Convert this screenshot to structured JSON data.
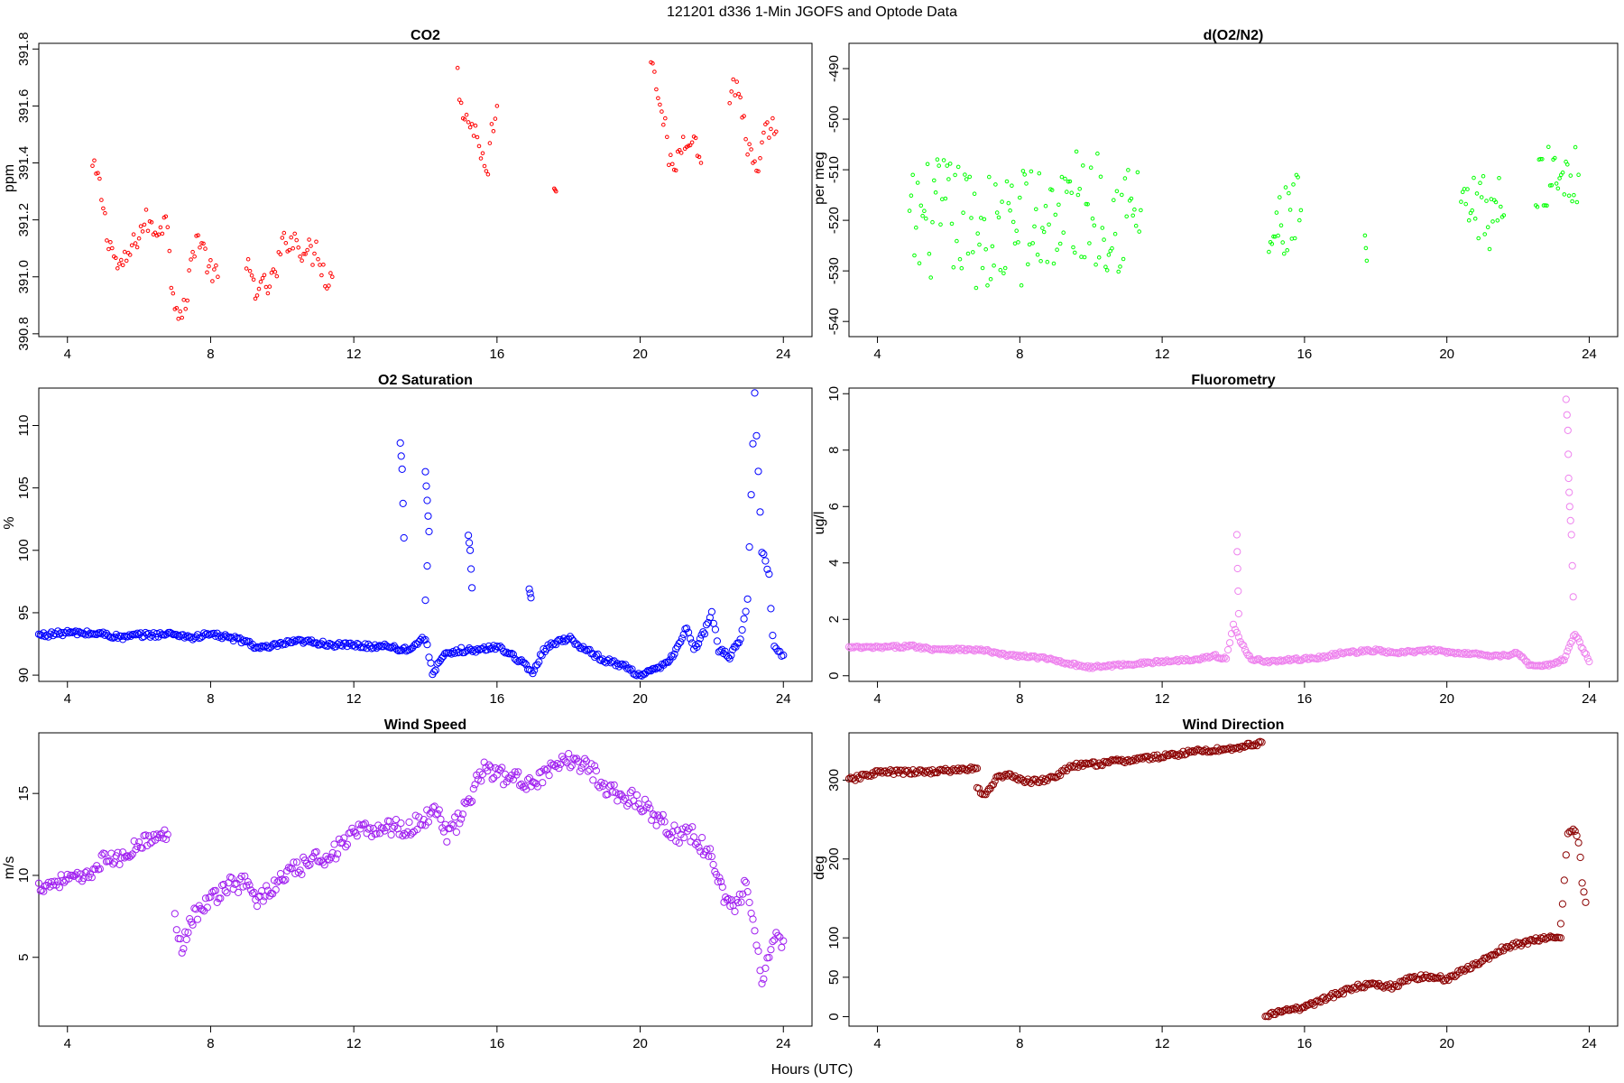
{
  "figure": {
    "title": "121201   d336   1-Min  JGOFS and Optode Data",
    "xlabel": "Hours (UTC)"
  },
  "chart_data": [
    {
      "type": "scatter",
      "id": "co2",
      "title": "CO2",
      "ylabel": "ppm",
      "color": "#ff0000",
      "marker_size": "small",
      "xlim": [
        3.2,
        24.8
      ],
      "ylim": [
        390.79,
        391.82
      ],
      "xticks": [
        4,
        8,
        12,
        16,
        20,
        24
      ],
      "yticks": [
        390.8,
        391.0,
        391.2,
        391.4,
        391.6,
        391.8
      ],
      "ytick_labels": [
        "390.8",
        "391.0",
        "391.2",
        "391.4",
        "391.6",
        "391.8"
      ],
      "segments": [
        {
          "x": [
            4.7,
            4.85,
            5.0,
            5.1,
            5.2,
            5.35,
            5.5,
            5.6,
            5.8,
            6.0,
            6.2,
            6.4,
            6.6,
            6.8,
            6.9,
            7.0,
            7.1,
            7.2,
            7.3,
            7.4,
            7.5,
            7.6,
            7.7,
            7.8,
            7.9,
            8.0,
            8.1,
            8.2
          ],
          "y": [
            391.38,
            391.35,
            391.25,
            391.15,
            391.12,
            391.05,
            391.03,
            391.05,
            391.1,
            391.15,
            391.2,
            391.16,
            391.18,
            391.2,
            391.0,
            390.92,
            390.88,
            390.86,
            390.9,
            391.0,
            391.08,
            391.14,
            391.13,
            391.1,
            391.05,
            391.02,
            391.01,
            391.0
          ],
          "noise": 0.04
        },
        {
          "x": [
            9.0,
            9.2,
            9.4,
            9.6,
            9.8,
            10.0,
            10.2,
            10.4,
            10.6,
            10.8,
            11.0,
            11.2,
            11.4
          ],
          "y": [
            391.03,
            390.98,
            390.95,
            390.97,
            391.0,
            391.1,
            391.14,
            391.12,
            391.1,
            391.08,
            391.1,
            391.0,
            391.0
          ],
          "noise": 0.05
        },
        {
          "x": [
            14.9,
            15.0,
            15.1,
            15.2,
            15.35,
            15.5,
            15.6,
            15.7,
            15.8,
            15.9,
            16.0
          ],
          "y": [
            391.7,
            391.62,
            391.58,
            391.55,
            391.52,
            391.48,
            391.42,
            391.35,
            391.45,
            391.55,
            391.6
          ],
          "noise": 0.05
        },
        {
          "x": [
            17.6,
            17.65
          ],
          "y": [
            391.31,
            391.3
          ],
          "noise": 0.0
        },
        {
          "x": [
            20.3,
            20.4,
            20.5,
            20.6,
            20.7,
            20.8,
            20.9,
            21.0,
            21.2,
            21.4,
            21.6,
            21.7
          ],
          "y": [
            391.78,
            391.72,
            391.66,
            391.6,
            391.52,
            391.42,
            391.36,
            391.4,
            391.48,
            391.5,
            391.45,
            391.4
          ],
          "noise": 0.04
        },
        {
          "x": [
            22.5,
            22.6,
            22.7,
            22.8,
            22.9,
            23.0,
            23.1,
            23.2,
            23.3,
            23.4,
            23.5,
            23.6,
            23.7,
            23.8
          ],
          "y": [
            391.62,
            391.68,
            391.66,
            391.62,
            391.55,
            391.45,
            391.42,
            391.38,
            391.35,
            391.44,
            391.5,
            391.52,
            391.53,
            391.51
          ],
          "noise": 0.04
        }
      ]
    },
    {
      "type": "scatter",
      "id": "o2n2",
      "title": "d(O2/N2)",
      "ylabel": "per meg",
      "color": "#00ff00",
      "marker_size": "small",
      "xlim": [
        3.2,
        24.8
      ],
      "ylim": [
        -543,
        -485
      ],
      "xticks": [
        4,
        8,
        12,
        16,
        20,
        24
      ],
      "yticks": [
        -540,
        -530,
        -520,
        -510,
        -500,
        -490
      ],
      "ytick_labels": [
        "-540",
        "-530",
        "-520",
        "-510",
        "-500",
        "-490"
      ],
      "segments": [
        {
          "x": [
            4.9,
            5.5,
            6.0,
            6.5,
            7.0,
            7.5,
            8.0,
            8.5,
            9.0,
            9.5,
            10.0,
            10.5,
            11.0,
            11.4
          ],
          "y": [
            -522,
            -520,
            -519,
            -521,
            -522,
            -523,
            -521,
            -520,
            -519,
            -518,
            -517,
            -518,
            -519,
            -518
          ],
          "noise": 12.0
        },
        {
          "x": [
            15.0,
            15.3,
            15.6,
            15.9
          ],
          "y": [
            -525,
            -522,
            -520,
            -518
          ],
          "noise": 8.0
        },
        {
          "x": [
            17.7,
            17.75
          ],
          "y": [
            -523,
            -528
          ],
          "noise": 0.0
        },
        {
          "x": [
            20.4,
            20.8,
            21.2,
            21.6
          ],
          "y": [
            -520,
            -519,
            -518,
            -519
          ],
          "noise": 8.0
        },
        {
          "x": [
            22.5,
            22.9,
            23.3,
            23.7
          ],
          "y": [
            -513,
            -511,
            -510,
            -511
          ],
          "noise": 6.0
        }
      ]
    },
    {
      "type": "scatter",
      "id": "o2sat",
      "title": "O2 Saturation",
      "ylabel": "%",
      "color": "#0000ff",
      "marker_size": "large",
      "xlim": [
        3.2,
        24.8
      ],
      "ylim": [
        89.5,
        113
      ],
      "xticks": [
        4,
        8,
        12,
        16,
        20,
        24
      ],
      "yticks": [
        90,
        95,
        100,
        105,
        110
      ],
      "ytick_labels": [
        "90",
        "95",
        "100",
        "105",
        "110"
      ],
      "segments": [
        {
          "x": [
            3.2,
            4.0,
            5.0,
            5.5,
            6.0,
            7.0,
            7.5,
            8.0,
            8.5,
            9.0,
            9.3,
            9.6,
            10.0,
            10.5,
            11.0,
            11.5,
            12.0,
            12.5,
            13.0,
            13.3,
            13.6,
            14.0,
            14.2,
            14.5,
            15.0,
            15.5,
            16.0,
            16.5,
            17.0,
            17.3,
            17.6,
            18.0,
            18.5,
            19.0,
            19.5,
            20.0,
            20.3,
            20.7,
            21.0,
            21.3,
            21.5,
            21.8,
            22.0,
            22.2,
            22.5,
            22.8,
            23.0,
            23.2,
            23.4,
            23.6,
            23.7,
            23.8,
            24.0
          ],
          "y": [
            93.2,
            93.4,
            93.3,
            93.0,
            93.2,
            93.3,
            93.0,
            93.3,
            93.0,
            92.7,
            92.2,
            92.2,
            92.5,
            92.7,
            92.6,
            92.4,
            92.4,
            92.3,
            92.4,
            92.0,
            92.2,
            93.0,
            90.2,
            91.5,
            92.0,
            92.0,
            92.3,
            91.5,
            90.2,
            92.0,
            92.6,
            93.0,
            92.0,
            91.2,
            90.8,
            90.0,
            90.3,
            90.8,
            92.0,
            93.8,
            92.0,
            93.5,
            95.0,
            92.0,
            91.5,
            93.0,
            96.0,
            112.5,
            100.0,
            98.0,
            93.0,
            92.0,
            91.6
          ],
          "noise": 0.2
        },
        {
          "x": [
            13.3,
            13.35,
            13.4
          ],
          "y": [
            108.6,
            106.5,
            101.0
          ],
          "noise": 0.0
        },
        {
          "x": [
            14.0,
            14.05,
            14.1,
            14.0
          ],
          "y": [
            106.3,
            104.0,
            101.5,
            96.0
          ],
          "noise": 0.0
        },
        {
          "x": [
            15.2,
            15.25,
            15.3
          ],
          "y": [
            101.2,
            100.0,
            97.0
          ],
          "noise": 0.0
        },
        {
          "x": [
            16.9,
            16.95
          ],
          "y": [
            96.9,
            96.2
          ],
          "noise": 0.0
        }
      ]
    },
    {
      "type": "scatter",
      "id": "fluor",
      "title": "Fluorometry",
      "ylabel": "ug/l",
      "color": "#ee82ee",
      "marker_size": "large",
      "xlim": [
        3.2,
        24.8
      ],
      "ylim": [
        -0.2,
        10.2
      ],
      "xticks": [
        4,
        8,
        12,
        16,
        20,
        24
      ],
      "yticks": [
        0,
        2,
        4,
        6,
        8,
        10
      ],
      "ytick_labels": [
        "0",
        "2",
        "4",
        "6",
        "8",
        "10"
      ],
      "segments": [
        {
          "x": [
            3.2,
            4.0,
            5.0,
            5.5,
            6.0,
            7.0,
            7.5,
            8.0,
            8.5,
            9.0,
            9.5,
            10.0,
            10.5,
            11.0,
            11.5,
            12.0,
            12.5,
            13.0,
            13.5,
            13.8,
            14.0,
            14.2,
            14.5,
            15.0,
            15.5,
            16.0,
            16.5,
            17.0,
            17.5,
            18.0,
            18.5,
            19.0,
            19.5,
            20.0,
            20.5,
            21.0,
            21.5,
            22.0,
            22.3,
            22.6,
            23.0,
            23.3,
            23.6,
            24.0
          ],
          "y": [
            1.0,
            1.0,
            1.05,
            0.95,
            0.95,
            0.9,
            0.75,
            0.7,
            0.65,
            0.55,
            0.4,
            0.3,
            0.35,
            0.4,
            0.45,
            0.5,
            0.55,
            0.6,
            0.7,
            0.6,
            1.8,
            1.2,
            0.6,
            0.5,
            0.55,
            0.6,
            0.65,
            0.8,
            0.85,
            0.9,
            0.8,
            0.85,
            0.9,
            0.85,
            0.8,
            0.75,
            0.7,
            0.8,
            0.4,
            0.35,
            0.4,
            0.6,
            1.5,
            0.5
          ],
          "noise": 0.05
        },
        {
          "x": [
            14.1,
            14.12,
            14.15
          ],
          "y": [
            5.0,
            3.8,
            2.2
          ],
          "noise": 0.0
        },
        {
          "x": [
            23.35,
            23.4,
            23.42,
            23.45,
            23.5,
            23.55
          ],
          "y": [
            9.8,
            8.7,
            7.0,
            6.0,
            5.0,
            2.8
          ],
          "noise": 0.0
        }
      ]
    },
    {
      "type": "scatter",
      "id": "wspd",
      "title": "Wind Speed",
      "ylabel": "m/s",
      "color": "#a020f0",
      "marker_size": "large",
      "xlim": [
        3.2,
        24.8
      ],
      "ylim": [
        0.8,
        18.7
      ],
      "xticks": [
        4,
        8,
        12,
        16,
        20,
        24
      ],
      "yticks": [
        5,
        10,
        15
      ],
      "ytick_labels": [
        "5",
        "10",
        "15"
      ],
      "segments": [
        {
          "x": [
            3.2,
            4.0,
            4.5,
            5.0,
            5.5,
            6.0,
            6.5,
            6.8
          ],
          "y": [
            9.3,
            9.8,
            9.8,
            11.0,
            11.0,
            12.0,
            12.3,
            12.5
          ],
          "noise": 0.4
        },
        {
          "x": [
            7.0,
            7.2,
            7.5,
            8.0,
            8.5,
            9.0,
            9.3,
            9.6,
            10.0,
            10.5,
            11.0,
            11.5,
            12.0,
            12.5,
            13.0,
            13.5,
            14.0,
            14.3,
            14.6,
            15.0,
            15.3,
            15.6,
            16.0,
            16.5,
            17.0,
            17.5,
            18.0,
            18.5,
            19.0,
            19.5,
            20.0,
            20.5,
            21.0,
            21.5,
            22.0,
            22.3,
            22.6,
            23.0,
            23.2,
            23.4,
            23.6,
            23.8,
            24.0
          ],
          "y": [
            7.5,
            5.8,
            7.5,
            8.5,
            9.5,
            9.5,
            8.5,
            9.0,
            9.8,
            10.5,
            11.0,
            11.5,
            12.5,
            12.8,
            13.0,
            12.8,
            13.5,
            14.2,
            12.5,
            13.5,
            15.0,
            16.5,
            16.2,
            15.8,
            15.8,
            16.3,
            17.0,
            16.8,
            15.5,
            14.8,
            14.5,
            13.5,
            12.5,
            12.5,
            11.0,
            9.0,
            8.0,
            9.5,
            6.5,
            3.5,
            5.0,
            6.0,
            6.0
          ],
          "noise": 0.55
        }
      ]
    },
    {
      "type": "scatter",
      "id": "wdir",
      "title": "Wind Direction",
      "ylabel": "deg",
      "color": "#8b0000",
      "marker_size": "large",
      "xlim": [
        3.2,
        24.8
      ],
      "ylim": [
        -12,
        360
      ],
      "xticks": [
        4,
        8,
        12,
        16,
        20,
        24
      ],
      "yticks": [
        0,
        50,
        100,
        200,
        300
      ],
      "ytick_labels": [
        "0",
        "50",
        "100",
        "200",
        "300"
      ],
      "segments": [
        {
          "x": [
            3.2,
            4.0,
            5.0,
            6.0,
            6.8
          ],
          "y": [
            300,
            310,
            310,
            312,
            315
          ],
          "noise": 3.0
        },
        {
          "x": [
            6.8,
            7.0,
            7.3,
            7.6,
            8.0,
            8.5,
            9.0,
            9.5,
            10.0,
            11.0,
            12.0,
            13.0,
            14.0,
            14.8
          ],
          "y": [
            290,
            280,
            300,
            308,
            300,
            298,
            305,
            318,
            320,
            325,
            330,
            337,
            340,
            348
          ],
          "noise": 3.0
        },
        {
          "x": [
            14.9,
            15.5,
            16.0,
            16.5,
            17.0,
            17.5,
            18.0,
            18.5,
            19.0,
            19.5,
            20.0,
            20.5,
            21.0,
            21.5,
            22.0,
            22.5,
            23.0,
            23.2
          ],
          "y": [
            0,
            8,
            12,
            22,
            30,
            38,
            40,
            38,
            50,
            50,
            48,
            60,
            70,
            85,
            92,
            97,
            100,
            100
          ],
          "noise": 3.0
        },
        {
          "x": [
            23.2,
            23.4,
            23.6,
            23.7,
            23.8,
            23.9
          ],
          "y": [
            120,
            230,
            240,
            225,
            170,
            145
          ],
          "noise": 5.0
        }
      ]
    }
  ]
}
